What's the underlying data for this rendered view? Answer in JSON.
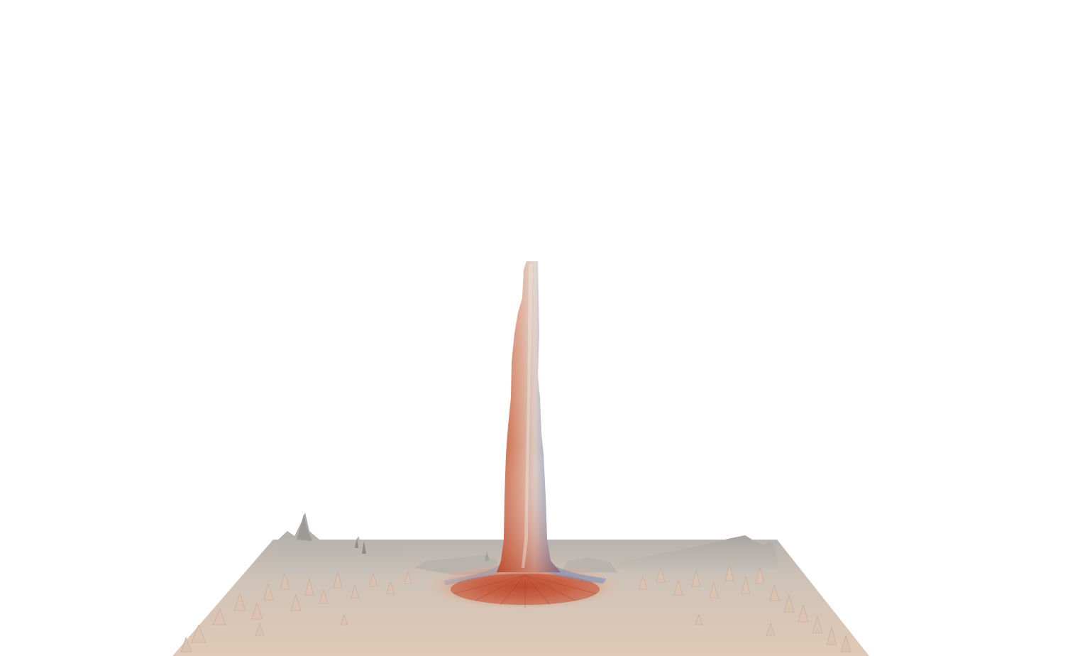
{
  "scene": {
    "background_color": "#ffffff",
    "colormap": [
      "#3b4cc0",
      "#dddcdc",
      "#b40426"
    ],
    "surface_base_color": "#d8c8bc",
    "surface_shadow_color": "#a9a6a2",
    "peak_warm_color": "#c6553a",
    "peak_cool_color": "#6f8fc4"
  }
}
